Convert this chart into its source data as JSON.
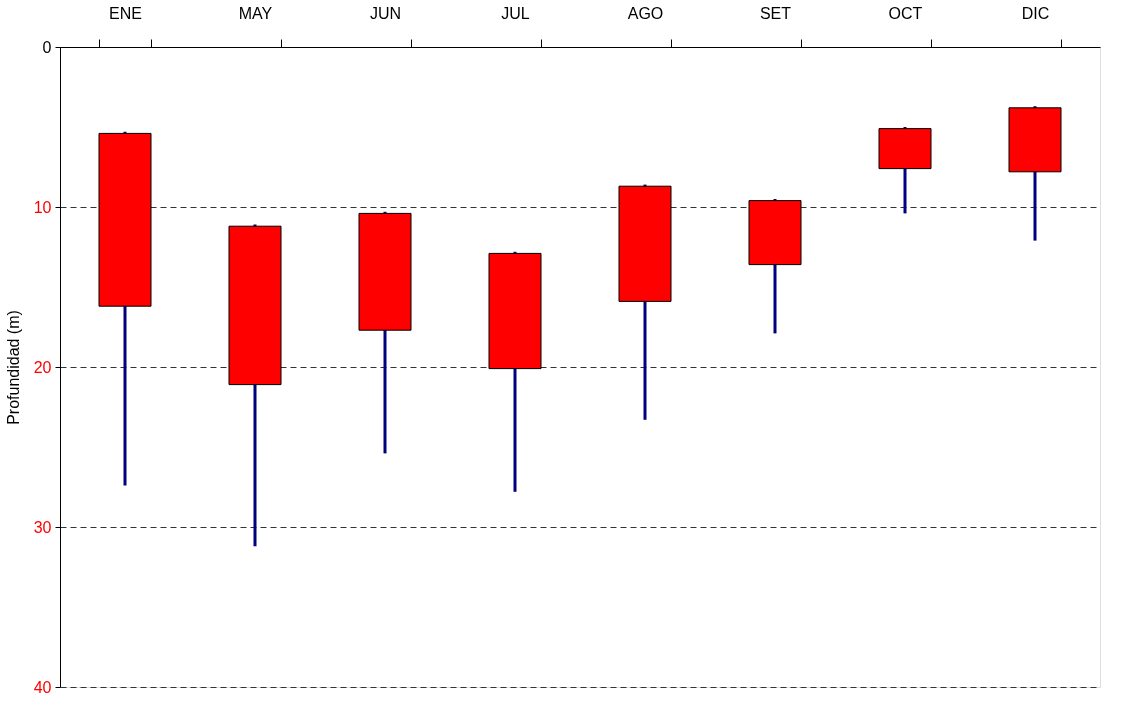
{
  "chart_data": {
    "type": "candlestick",
    "ylabel": "Profundidad (m)",
    "categories": [
      "ENE",
      "MAY",
      "JUN",
      "JUL",
      "AGO",
      "SET",
      "OCT",
      "DIC"
    ],
    "ohlc": [
      [
        5.4,
        27.4,
        5.3,
        16.2
      ],
      [
        11.2,
        31.2,
        11.1,
        21.1
      ],
      [
        10.4,
        25.4,
        10.3,
        17.7
      ],
      [
        12.9,
        27.8,
        12.8,
        20.1
      ],
      [
        8.7,
        23.3,
        8.6,
        15.9
      ],
      [
        9.6,
        17.9,
        9.5,
        13.6
      ],
      [
        5.1,
        10.4,
        5.0,
        7.6
      ],
      [
        3.8,
        12.1,
        3.7,
        7.8
      ]
    ],
    "color": "#ff0000",
    "ylim": [
      40,
      0
    ],
    "yticks": [
      0,
      10,
      20,
      30,
      40
    ],
    "grid": "y"
  }
}
